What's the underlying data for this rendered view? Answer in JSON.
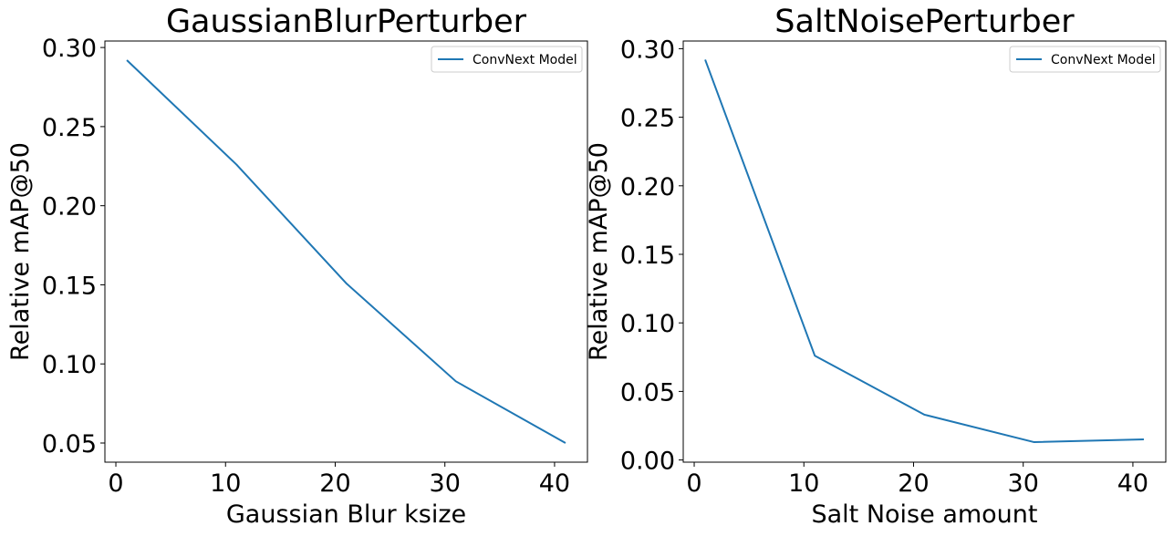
{
  "chart_data": [
    {
      "type": "line",
      "title": "GaussianBlurPerturber",
      "xlabel": "Gaussian Blur ksize",
      "ylabel": "Relative mAP@50",
      "x": [
        1,
        11,
        21,
        31,
        41
      ],
      "series": [
        {
          "name": "ConvNext Model",
          "color": "#1f77b4",
          "values": [
            0.292,
            0.226,
            0.151,
            0.089,
            0.05
          ]
        }
      ],
      "xlim": [
        -1,
        43
      ],
      "ylim": [
        0.0379,
        0.3041
      ],
      "xticks": [
        0,
        10,
        20,
        30,
        40
      ],
      "xtick_labels": [
        "0",
        "10",
        "20",
        "30",
        "40"
      ],
      "yticks": [
        0.05,
        0.1,
        0.15,
        0.2,
        0.25,
        0.3
      ],
      "ytick_labels": [
        "0.05",
        "0.10",
        "0.15",
        "0.20",
        "0.25",
        "0.30"
      ],
      "legend": "top-right",
      "grid": false
    },
    {
      "type": "line",
      "title": "SaltNoisePerturber",
      "xlabel": "Salt Noise amount",
      "ylabel": "Relative mAP@50",
      "x": [
        1,
        11,
        21,
        31,
        41
      ],
      "series": [
        {
          "name": "ConvNext Model",
          "color": "#1f77b4",
          "values": [
            0.292,
            0.076,
            0.033,
            0.013,
            0.015
          ]
        }
      ],
      "xlim": [
        -1,
        43
      ],
      "ylim": [
        -0.0016,
        0.3056
      ],
      "xticks": [
        0,
        10,
        20,
        30,
        40
      ],
      "xtick_labels": [
        "0",
        "10",
        "20",
        "30",
        "40"
      ],
      "yticks": [
        0.0,
        0.05,
        0.1,
        0.15,
        0.2,
        0.25,
        0.3
      ],
      "ytick_labels": [
        "0.00",
        "0.05",
        "0.10",
        "0.15",
        "0.20",
        "0.25",
        "0.30"
      ],
      "legend": "top-right",
      "grid": false
    }
  ]
}
